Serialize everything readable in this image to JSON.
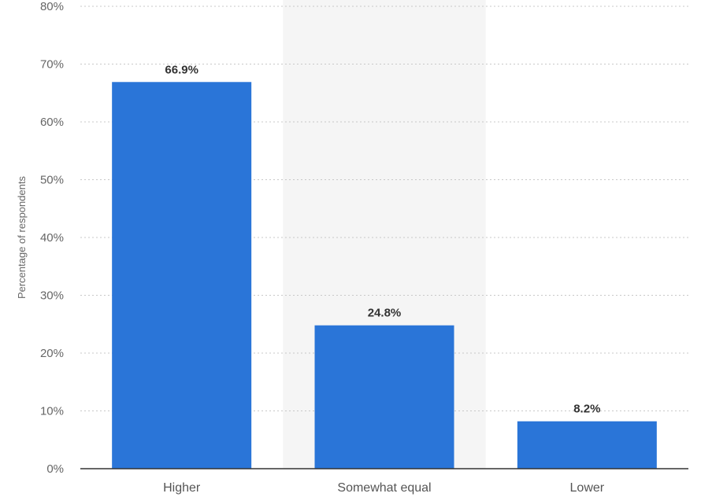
{
  "chart_data": {
    "type": "bar",
    "categories": [
      "Higher",
      "Somewhat equal",
      "Lower"
    ],
    "values": [
      66.9,
      24.8,
      8.2
    ],
    "data_labels": [
      "66.9%",
      "24.8%",
      "8.2%"
    ],
    "title": "",
    "xlabel": "",
    "ylabel": "Percentage of respondents",
    "ylim": [
      0,
      80
    ],
    "yticks": [
      0,
      10,
      20,
      30,
      40,
      50,
      60,
      70,
      80
    ],
    "ytick_labels": [
      "0%",
      "10%",
      "20%",
      "30%",
      "40%",
      "50%",
      "60%",
      "70%",
      "80%"
    ],
    "grid": true,
    "grid_style": "dotted",
    "highlighted_category_index": 1,
    "colors": {
      "bar": "#2a75d8",
      "grid": "#c8c8c8",
      "axis": "#333333",
      "highlight_band": "#f5f5f5"
    }
  }
}
